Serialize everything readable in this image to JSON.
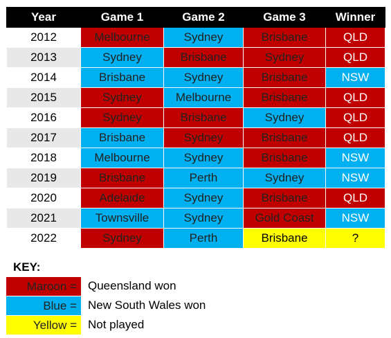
{
  "table": {
    "headers": [
      "Year",
      "Game 1",
      "Game 2",
      "Game 3",
      "Winner"
    ],
    "rows": [
      {
        "year": "2012",
        "g1": "Melbourne",
        "g1c": "maroon",
        "g2": "Sydney",
        "g2c": "blue",
        "g3": "Brisbane",
        "g3c": "maroon",
        "winner": "QLD",
        "wc": "maroon"
      },
      {
        "year": "2013",
        "g1": "Sydney",
        "g1c": "blue",
        "g2": "Brisbane",
        "g2c": "maroon",
        "g3": "Sydney",
        "g3c": "maroon",
        "winner": "QLD",
        "wc": "maroon"
      },
      {
        "year": "2014",
        "g1": "Brisbane",
        "g1c": "blue",
        "g2": "Sydney",
        "g2c": "blue",
        "g3": "Brisbane",
        "g3c": "maroon",
        "winner": "NSW",
        "wc": "blue"
      },
      {
        "year": "2015",
        "g1": "Sydney",
        "g1c": "maroon",
        "g2": "Melbourne",
        "g2c": "blue",
        "g3": "Brisbane",
        "g3c": "maroon",
        "winner": "QLD",
        "wc": "maroon"
      },
      {
        "year": "2016",
        "g1": "Sydney",
        "g1c": "maroon",
        "g2": "Brisbane",
        "g2c": "maroon",
        "g3": "Sydney",
        "g3c": "blue",
        "winner": "QLD",
        "wc": "maroon"
      },
      {
        "year": "2017",
        "g1": "Brisbane",
        "g1c": "blue",
        "g2": "Sydney",
        "g2c": "maroon",
        "g3": "Brisbane",
        "g3c": "maroon",
        "winner": "QLD",
        "wc": "maroon"
      },
      {
        "year": "2018",
        "g1": "Melbourne",
        "g1c": "blue",
        "g2": "Sydney",
        "g2c": "blue",
        "g3": "Brisbane",
        "g3c": "maroon",
        "winner": "NSW",
        "wc": "blue"
      },
      {
        "year": "2019",
        "g1": "Brisbane",
        "g1c": "maroon",
        "g2": "Perth",
        "g2c": "blue",
        "g3": "Sydney",
        "g3c": "blue",
        "winner": "NSW",
        "wc": "blue"
      },
      {
        "year": "2020",
        "g1": "Adelaide",
        "g1c": "maroon",
        "g2": "Sydney",
        "g2c": "blue",
        "g3": "Brisbane",
        "g3c": "maroon",
        "winner": "QLD",
        "wc": "maroon"
      },
      {
        "year": "2021",
        "g1": "Townsville",
        "g1c": "blue",
        "g2": "Sydney",
        "g2c": "blue",
        "g3": "Gold Coast",
        "g3c": "maroon",
        "winner": "NSW",
        "wc": "blue"
      },
      {
        "year": "2022",
        "g1": "Sydney",
        "g1c": "maroon",
        "g2": "Perth",
        "g2c": "blue",
        "g3": "Brisbane",
        "g3c": "yellow",
        "winner": "?",
        "wc": "yellow"
      }
    ]
  },
  "key": {
    "title": "KEY:",
    "items": [
      {
        "label": "Maroon =",
        "color": "maroon",
        "description": "Queensland won"
      },
      {
        "label": "Blue =",
        "color": "blue",
        "description": "New South Wales won"
      },
      {
        "label": "Yellow =",
        "color": "yellow",
        "description": "Not played"
      }
    ]
  },
  "colors": {
    "maroon": "#c00000",
    "blue": "#00b0f0",
    "yellow": "#ffff00",
    "header": "#000000"
  }
}
